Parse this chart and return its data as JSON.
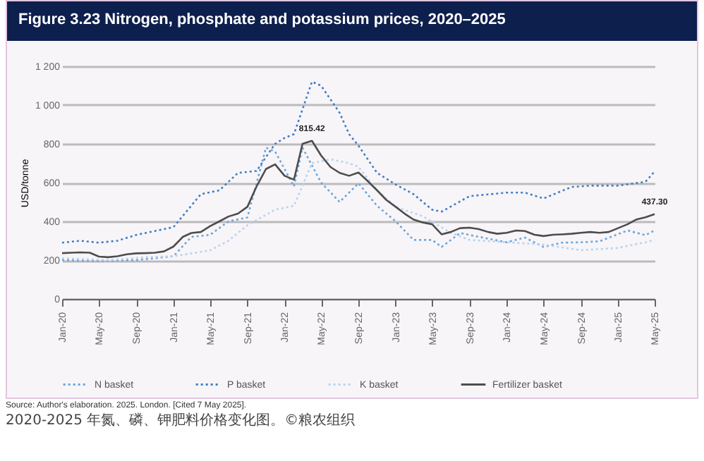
{
  "chart_data": {
    "type": "line",
    "title": "Figure 3.23 Nitrogen, phosphate and potassium prices, 2020–2025",
    "ylabel": "USD/tonne",
    "ylim": [
      0,
      1200
    ],
    "yticks": [
      0,
      200,
      400,
      600,
      800,
      {
        "value": 1000,
        "label": "1 000"
      },
      {
        "value": 1200,
        "label": "1 200"
      }
    ],
    "xlim": [
      "2020-01",
      "2025-05"
    ],
    "xticks": [
      {
        "value": "2020-01",
        "label": "Jan-20"
      },
      {
        "value": "2020-05",
        "label": "May-20"
      },
      {
        "value": "2020-09",
        "label": "Sep-20"
      },
      {
        "value": "2021-01",
        "label": "Jan-21"
      },
      {
        "value": "2021-05",
        "label": "May-21"
      },
      {
        "value": "2021-09",
        "label": "Sep-21"
      },
      {
        "value": "2022-01",
        "label": "Jan-22"
      },
      {
        "value": "2022-05",
        "label": "May-22"
      },
      {
        "value": "2022-09",
        "label": "Sep-22"
      },
      {
        "value": "2023-01",
        "label": "Jan-23"
      },
      {
        "value": "2023-05",
        "label": "May-23"
      },
      {
        "value": "2023-09",
        "label": "Sep-23"
      },
      {
        "value": "2024-01",
        "label": "Jan-24"
      },
      {
        "value": "2024-05",
        "label": "May-24"
      },
      {
        "value": "2024-09",
        "label": "Sep-24"
      },
      {
        "value": "2025-01",
        "label": "Jan-25"
      },
      {
        "value": "2025-05",
        "label": "May-25"
      }
    ],
    "grid": "y",
    "legend": "bottom",
    "series": [
      {
        "name": "N basket",
        "color": "#6aa6dc",
        "line_style": "dotted",
        "x": [
          "2020-01",
          "2020-05",
          "2020-09",
          "2021-01",
          "2021-03",
          "2021-05",
          "2021-07",
          "2021-09",
          "2021-11",
          "2021-12",
          "2022-02",
          "2022-03",
          "2022-05",
          "2022-07",
          "2022-09",
          "2022-11",
          "2023-01",
          "2023-03",
          "2023-05",
          "2023-06",
          "2023-08",
          "2023-10",
          "2024-01",
          "2024-03",
          "2024-05",
          "2024-07",
          "2024-09",
          "2024-11",
          "2025-02",
          "2025-04",
          "2025-05"
        ],
        "values": [
          200,
          195,
          200,
          220,
          320,
          330,
          400,
          420,
          780,
          760,
          580,
          780,
          600,
          500,
          596,
          480,
          400,
          304,
          304,
          268,
          340,
          320,
          292,
          316,
          268,
          290,
          292,
          297,
          353,
          329,
          353
        ]
      },
      {
        "name": "P basket",
        "color": "#3f7fc4",
        "line_style": "dotted",
        "x": [
          "2020-01",
          "2020-03",
          "2020-05",
          "2020-07",
          "2020-09",
          "2020-11",
          "2021-01",
          "2021-04",
          "2021-06",
          "2021-08",
          "2021-10",
          "2021-12",
          "2022-01",
          "2022-02",
          "2022-04",
          "2022-05",
          "2022-07",
          "2022-08",
          "2022-09",
          "2022-11",
          "2023-01",
          "2023-03",
          "2023-05",
          "2023-06",
          "2023-09",
          "2024-01",
          "2024-03",
          "2024-05",
          "2024-08",
          "2024-10",
          "2025-01",
          "2025-04",
          "2025-05"
        ],
        "values": [
          290,
          300,
          290,
          300,
          330,
          350,
          370,
          540,
          560,
          650,
          660,
          800,
          830,
          850,
          1120,
          1100,
          960,
          850,
          790,
          650,
          590,
          540,
          460,
          450,
          530,
          548,
          548,
          518,
          577,
          584,
          584,
          604,
          657
        ]
      },
      {
        "name": "K basket",
        "color": "#b9d3ee",
        "line_style": "dotted",
        "x": [
          "2020-01",
          "2020-06",
          "2020-10",
          "2021-01",
          "2021-05",
          "2021-07",
          "2021-09",
          "2021-12",
          "2022-02",
          "2022-04",
          "2022-06",
          "2022-08",
          "2022-09",
          "2022-11",
          "2023-01",
          "2023-04",
          "2023-07",
          "2023-09",
          "2024-01",
          "2024-05",
          "2024-09",
          "2025-01",
          "2025-04",
          "2025-05"
        ],
        "values": [
          210,
          200,
          215,
          220,
          250,
          300,
          380,
          460,
          480,
          700,
          720,
          700,
          681,
          560,
          475,
          426,
          341,
          304,
          292,
          280,
          251,
          263,
          292,
          304
        ]
      },
      {
        "name": "Fertilizer basket",
        "color": "#4d4d4d",
        "line_style": "solid",
        "x": [
          "2020-01",
          "2020-02",
          "2020-03",
          "2020-04",
          "2020-05",
          "2020-06",
          "2020-07",
          "2020-08",
          "2020-09",
          "2020-10",
          "2020-11",
          "2020-12",
          "2021-01",
          "2021-02",
          "2021-03",
          "2021-04",
          "2021-05",
          "2021-06",
          "2021-07",
          "2021-08",
          "2021-09",
          "2021-10",
          "2021-11",
          "2021-12",
          "2022-01",
          "2022-02",
          "2022-03",
          "2022-04",
          "2022-05",
          "2022-06",
          "2022-07",
          "2022-08",
          "2022-09",
          "2022-10",
          "2022-11",
          "2022-12",
          "2023-01",
          "2023-02",
          "2023-03",
          "2023-04",
          "2023-05",
          "2023-06",
          "2023-07",
          "2023-08",
          "2023-09",
          "2023-10",
          "2023-11",
          "2023-12",
          "2024-01",
          "2024-02",
          "2024-03",
          "2024-04",
          "2024-05",
          "2024-06",
          "2024-07",
          "2024-08",
          "2024-09",
          "2024-10",
          "2024-11",
          "2024-12",
          "2025-01",
          "2025-02",
          "2025-03",
          "2025-04",
          "2025-05"
        ],
        "values": [
          236,
          238,
          240,
          238,
          218,
          215,
          220,
          230,
          235,
          236,
          238,
          245,
          270,
          320,
          340,
          345,
          375,
          400,
          425,
          440,
          475,
          580,
          670,
          694,
          635,
          615,
          800,
          815.42,
          740,
          680,
          650,
          635,
          652,
          608,
          560,
          511,
          475,
          438,
          409,
          394,
          385,
          333,
          345,
          365,
          367,
          360,
          345,
          336,
          341,
          353,
          350,
          331,
          324,
          331,
          333,
          336,
          341,
          345,
          341,
          345,
          365,
          385,
          409,
          421,
          437.3
        ]
      }
    ],
    "annotations": [
      {
        "text": "815.42",
        "x": "2022-04",
        "y": 815.42
      },
      {
        "text": "437.30",
        "x": "2025-05",
        "y": 437.3
      },
      "Source: Author's elaboration. 2025. London. [Cited 7 May 2025].",
      "2020-2025 年氮、磷、钾肥料价格变化图。©粮农组织"
    ]
  }
}
